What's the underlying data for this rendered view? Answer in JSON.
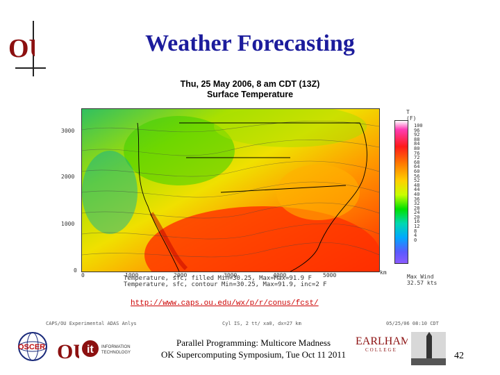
{
  "slide": {
    "title": "Weather Forecasting",
    "footer_line1": "Parallel Programming: Multicore Madness",
    "footer_line2": "OK Supercomputing Symposium, Tue Oct 11 2011",
    "number": "42",
    "url": "http://www.caps.ou.edu/wx/p/r/conus/fcst/"
  },
  "map": {
    "title_line1": "Thu, 25 May 2006, 8 am CDT (13Z)",
    "title_line2": "Surface Temperature",
    "y_ticks": [
      "3000",
      "2000",
      "1000",
      "0"
    ],
    "x_ticks": [
      "0",
      "1000",
      "2000",
      "3000",
      "4000",
      "5000"
    ],
    "x_end_label": "km",
    "meta_line1": "Temperature, sfc, filled  Min=30.25, Max=Max=91.9 F",
    "meta_line2": "Temperature, sfc, contour  Min=30.25, Max=91.9, inc=2 F",
    "caps_left": "CAPS/OU Experimental ADAS Anlys",
    "caps_mid": "Cyl  IS, 2 tt/ xa0,  dx=27 km",
    "caps_right": "05/25/06 08:10 CDT",
    "colorbar_header": [
      "T",
      "(F)"
    ],
    "colorbar_ticks": [
      "100",
      "96",
      "92",
      "88",
      "84",
      "80",
      "76",
      "72",
      "68",
      "64",
      "60",
      "56",
      "52",
      "48",
      "44",
      "40",
      "36",
      "32",
      "28",
      "24",
      "20",
      "16",
      "12",
      "8",
      "4",
      "0"
    ],
    "max_wind_label": "Max Wind",
    "max_wind_value": "32.57 kts",
    "colors": {
      "hot": "#ff2a00",
      "warm": "#ffa000",
      "mild": "#f0e000",
      "cool": "#40d000",
      "cold": "#00b0a0"
    }
  },
  "logos": {
    "ou": "OU",
    "oscer": "OSCER",
    "ou_small": "OU",
    "it_line1": "INFORMATION",
    "it_line2": "TECHNOLOGY",
    "earlham_top": "EARLHAM",
    "earlham_bottom": "COLLEGE"
  }
}
